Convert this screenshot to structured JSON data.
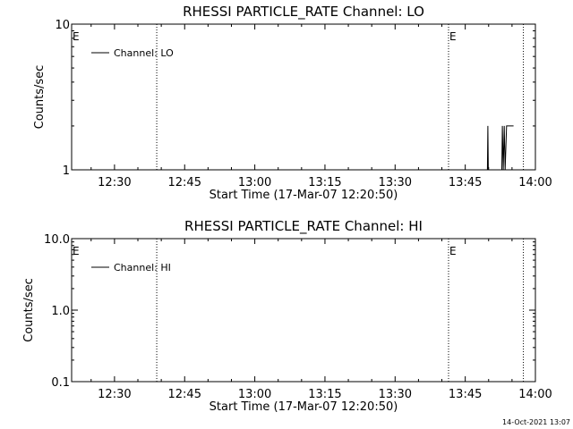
{
  "chart_data": [
    {
      "type": "line",
      "title": "RHESSI PARTICLE_RATE Channel: LO",
      "xlabel": "Start Time (17-Mar-07 12:20:50)",
      "ylabel": "Counts/sec",
      "y_scale": "log",
      "ylim": [
        1,
        10
      ],
      "y_ticks": [
        "1",
        "10"
      ],
      "x_ticks": [
        "12:30",
        "12:45",
        "13:00",
        "13:15",
        "13:30",
        "13:45",
        "14:00"
      ],
      "x_tick_minutes": [
        9.17,
        24.17,
        39.17,
        54.17,
        69.17,
        84.17,
        99.17
      ],
      "xlim_minutes": [
        0,
        99.17
      ],
      "legend": {
        "placement": "top-left",
        "entries": [
          "Channel: LO"
        ]
      },
      "event_markers": [
        {
          "label": "E",
          "minute": 0
        },
        {
          "label": "E",
          "minute": 80.6
        }
      ],
      "dotted_lines_minutes": [
        18.2,
        80.6,
        96.6
      ],
      "series": [
        {
          "name": "Channel: LO",
          "color": "#000000",
          "points": [
            [
              88.9,
              1
            ],
            [
              89.0,
              2
            ],
            [
              89.1,
              1
            ],
            [
              89.3,
              1
            ],
            [
              92.0,
              1
            ],
            [
              92.1,
              2
            ],
            [
              92.3,
              1
            ],
            [
              92.5,
              2
            ],
            [
              92.7,
              1
            ],
            [
              93.0,
              2
            ],
            [
              94.5,
              2
            ]
          ]
        }
      ]
    },
    {
      "type": "line",
      "title": "RHESSI PARTICLE_RATE Channel: HI",
      "xlabel": "Start Time (17-Mar-07 12:20:50)",
      "ylabel": "Counts/sec",
      "y_scale": "log",
      "ylim": [
        0.1,
        10
      ],
      "y_ticks": [
        "0.1",
        "1.0",
        "10.0"
      ],
      "x_ticks": [
        "12:30",
        "12:45",
        "13:00",
        "13:15",
        "13:30",
        "13:45",
        "14:00"
      ],
      "x_tick_minutes": [
        9.17,
        24.17,
        39.17,
        54.17,
        69.17,
        84.17,
        99.17
      ],
      "xlim_minutes": [
        0,
        99.17
      ],
      "legend": {
        "placement": "top-left",
        "entries": [
          "Channel: HI"
        ]
      },
      "event_markers": [
        {
          "label": "E",
          "minute": 0
        },
        {
          "label": "E",
          "minute": 80.6
        }
      ],
      "dotted_lines_minutes": [
        18.2,
        80.6,
        96.6
      ],
      "series": [
        {
          "name": "Channel: HI",
          "color": "#000000",
          "points": []
        }
      ]
    }
  ],
  "footer": {
    "timestamp": "14-Oct-2021 13:07"
  }
}
